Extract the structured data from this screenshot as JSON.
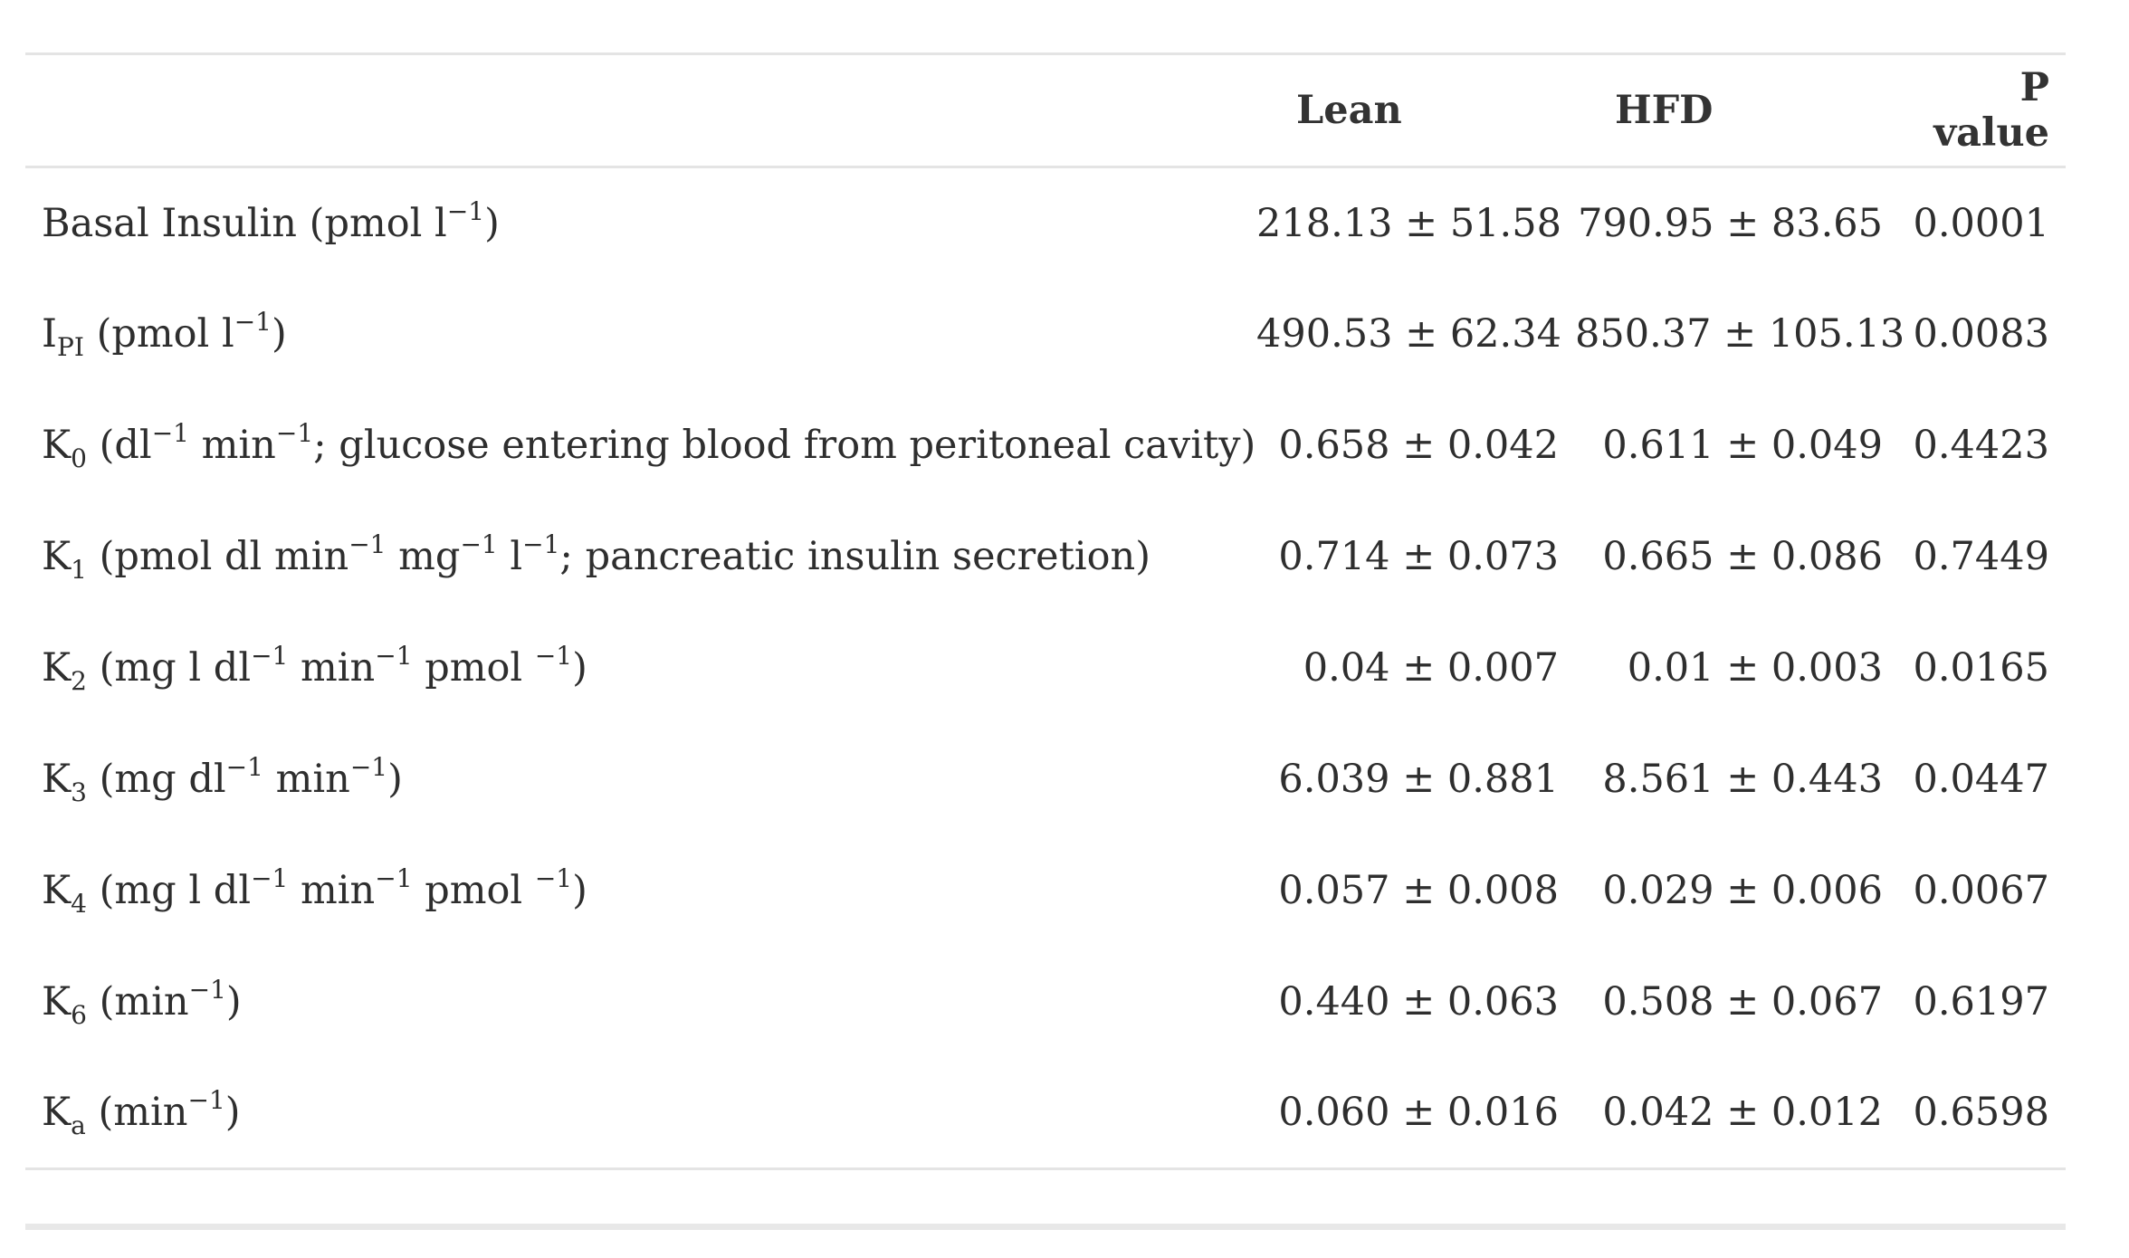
{
  "table": {
    "headers": {
      "parameter": "",
      "lean": "Lean",
      "hfd": "HFD",
      "p_value": "P value"
    },
    "rows": [
      {
        "param": {
          "base": "Basal Insulin (pmol l",
          "s1": "−1",
          "rest": ")"
        },
        "lean": "218.13 ± 51.58",
        "hfd": "790.95 ± 83.65",
        "p": "0.0001"
      },
      {
        "param": {
          "base": "I",
          "sub": "PI",
          "text": " (pmol l",
          "s1": "−1",
          "rest": ")"
        },
        "lean": "490.53 ± 62.34",
        "hfd": "850.37 ± 105.13",
        "p": "0.0083"
      },
      {
        "param": {
          "base": "K",
          "sub": "0",
          "t1": " (dl",
          "s1": "−1",
          "t2": " min",
          "s2": "−1",
          "rest": "; glucose entering blood from peritoneal cavity)"
        },
        "lean": "0.658 ± 0.042",
        "hfd": "0.611 ± 0.049",
        "p": "0.4423"
      },
      {
        "param": {
          "base": "K",
          "sub": "1",
          "t1": " (pmol dl min",
          "s1": "−1",
          "t2": " mg",
          "s2": "−1",
          "t3": " l",
          "s3": "−1",
          "rest": "; pancreatic insulin secretion)"
        },
        "lean": "0.714 ± 0.073",
        "hfd": "0.665 ± 0.086",
        "p": "0.7449"
      },
      {
        "param": {
          "base": "K",
          "sub": "2",
          "t1": " (mg l dl",
          "s1": "−1",
          "t2": " min",
          "s2": "−1",
          "t3": " pmol ",
          "s3": "−1",
          "rest": ")"
        },
        "lean": "0.04 ± 0.007",
        "hfd": "0.01 ± 0.003",
        "p": "0.0165"
      },
      {
        "param": {
          "base": "K",
          "sub": "3",
          "t1": " (mg dl",
          "s1": "−1",
          "t2": " min",
          "s2": "−1",
          "rest": ")"
        },
        "lean": "6.039 ± 0.881",
        "hfd": "8.561 ± 0.443",
        "p": "0.0447"
      },
      {
        "param": {
          "base": "K",
          "sub": "4",
          "t1": " (mg l dl",
          "s1": "−1",
          "t2": " min",
          "s2": "−1",
          "t3": " pmol ",
          "s3": "−1",
          "rest": ")"
        },
        "lean": "0.057 ± 0.008",
        "hfd": "0.029 ± 0.006",
        "p": "0.0067"
      },
      {
        "param": {
          "base": "K",
          "sub": "6",
          "t1": " (min",
          "s1": "−1",
          "rest": ")"
        },
        "lean": "0.440 ± 0.063",
        "hfd": "0.508 ± 0.067",
        "p": "0.6197"
      },
      {
        "param": {
          "base": "K",
          "sub": "a",
          "t1": " (min",
          "s1": "−1",
          "rest": ")"
        },
        "lean": "0.060 ± 0.016",
        "hfd": "0.042 ± 0.012",
        "p": "0.6598"
      }
    ]
  }
}
